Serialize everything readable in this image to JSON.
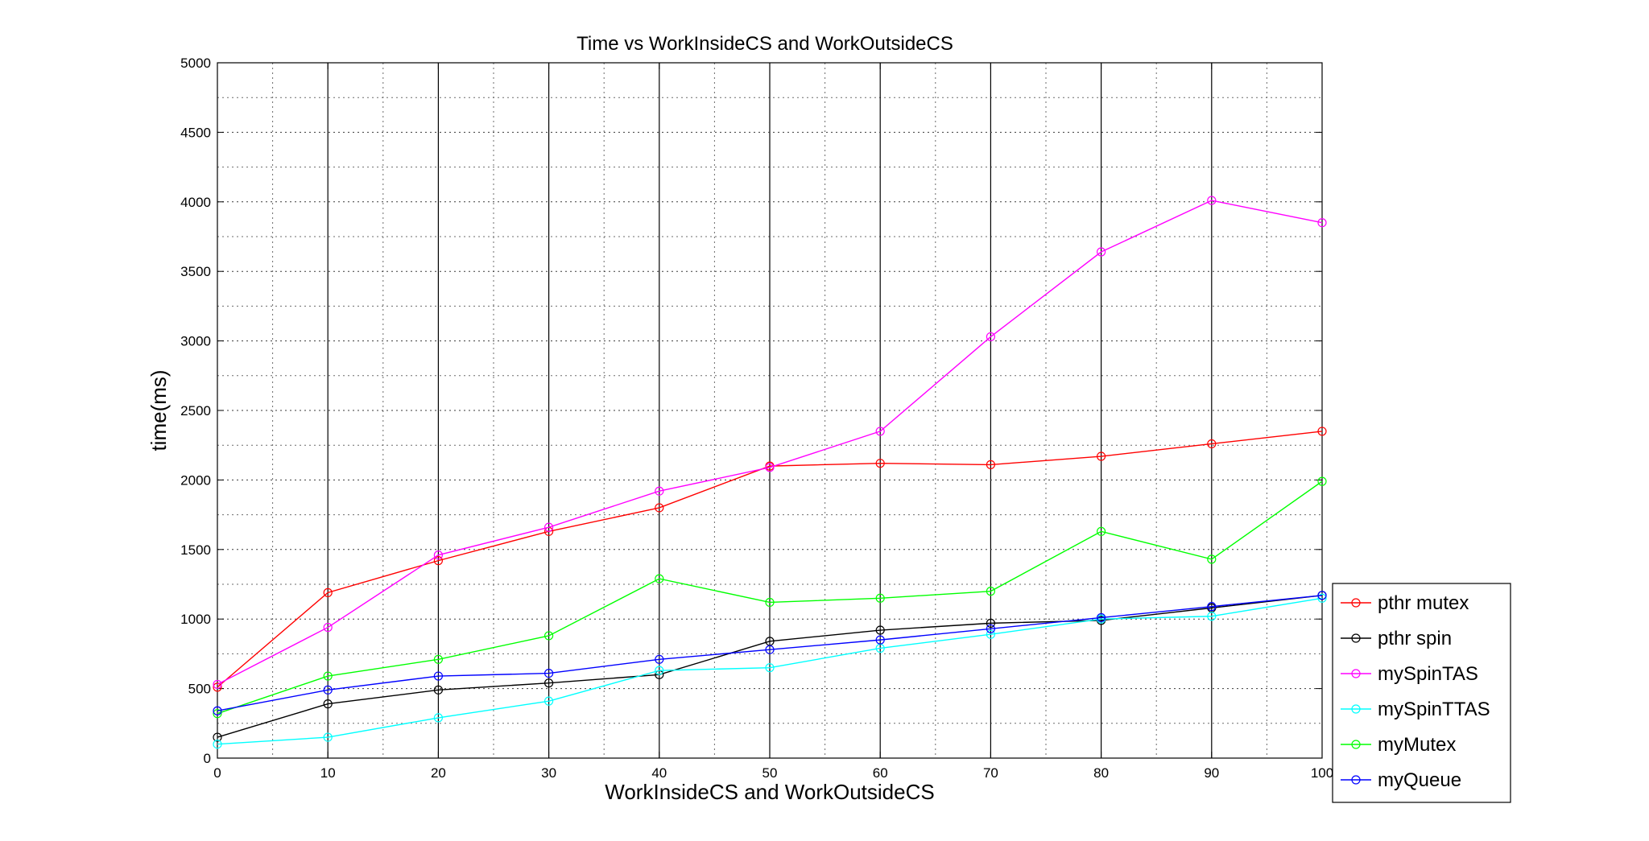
{
  "chart_data": {
    "type": "line",
    "title": "Time vs WorkInsideCS and WorkOutsideCS",
    "xlabel": "WorkInsideCS and WorkOutsideCS",
    "ylabel": "time(ms)",
    "xlim": [
      0,
      100
    ],
    "ylim": [
      0,
      5000
    ],
    "x": [
      0,
      10,
      20,
      30,
      40,
      50,
      60,
      70,
      80,
      90,
      100
    ],
    "xticks": [
      "0",
      "10",
      "20",
      "30",
      "40",
      "50",
      "60",
      "70",
      "80",
      "90",
      "100"
    ],
    "yticks": [
      "0",
      "500",
      "1000",
      "1500",
      "2000",
      "2500",
      "3000",
      "3500",
      "4000",
      "4500",
      "5000"
    ],
    "grid": true,
    "legend_position": "bottom-right-outside",
    "series": [
      {
        "name": "pthr mutex",
        "color": "#ff0000",
        "values": [
          510,
          1190,
          1420,
          1630,
          1800,
          2100,
          2120,
          2110,
          2170,
          2260,
          2350
        ]
      },
      {
        "name": "pthr spin",
        "color": "#000000",
        "values": [
          150,
          390,
          490,
          540,
          600,
          840,
          920,
          970,
          990,
          1080,
          1170
        ]
      },
      {
        "name": "mySpinTAS",
        "color": "#ff00ff",
        "values": [
          530,
          940,
          1460,
          1660,
          1920,
          2090,
          2350,
          3030,
          3640,
          4010,
          3850
        ]
      },
      {
        "name": "mySpinTTAS",
        "color": "#00ffff",
        "values": [
          100,
          150,
          290,
          410,
          630,
          650,
          790,
          890,
          1000,
          1020,
          1150
        ]
      },
      {
        "name": "myMutex",
        "color": "#00ff00",
        "values": [
          320,
          590,
          710,
          880,
          1290,
          1120,
          1150,
          1200,
          1630,
          1430,
          1990
        ]
      },
      {
        "name": "myQueue",
        "color": "#0000ff",
        "values": [
          340,
          490,
          590,
          610,
          710,
          780,
          850,
          930,
          1010,
          1090,
          1170
        ]
      }
    ]
  }
}
